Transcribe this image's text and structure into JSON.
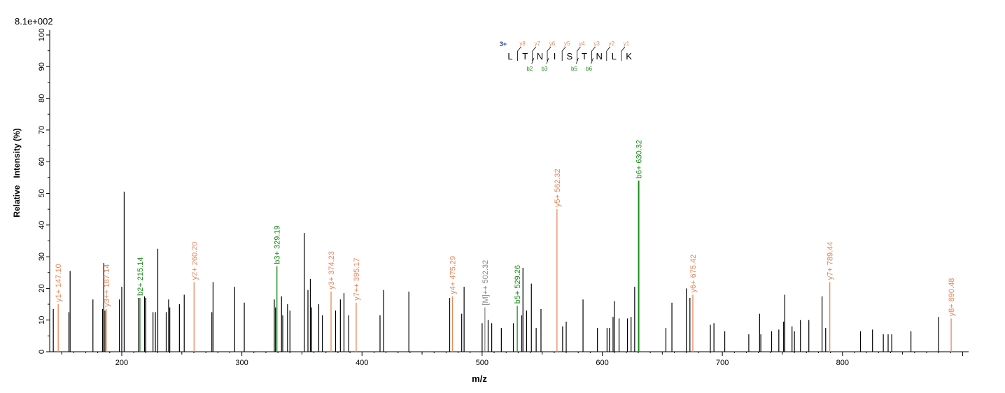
{
  "max_intensity_label": "8.1e+002",
  "chart_data": {
    "type": "bar",
    "xlabel": "m/z",
    "ylabel": "Relative   Intensity (%)",
    "xlim": [
      140,
      905
    ],
    "ylim": [
      0,
      100
    ],
    "x_ticks": [
      200,
      300,
      400,
      500,
      600,
      700,
      800
    ],
    "y_ticks": [
      0,
      10,
      20,
      30,
      40,
      50,
      60,
      70,
      80,
      90,
      100
    ],
    "colors": {
      "unmatched": "#000000",
      "y_ion": "#e8875a",
      "b_ion": "#1a8a1a",
      "precursor": "#8a8a8a",
      "charge": "#1f3b8f"
    },
    "peptide": {
      "charge": "3+",
      "residues": [
        "L",
        "T",
        "N",
        "I",
        "S",
        "T",
        "N",
        "L",
        "K"
      ],
      "y_labels": [
        "y8",
        "y7",
        "y6",
        "y5",
        "y4",
        "y3",
        "y2",
        "y1"
      ],
      "b_labels": [
        "b2",
        "b3",
        "b5",
        "b6"
      ]
    },
    "unmatched_peaks": [
      [
        143,
        13.5
      ],
      [
        156,
        12.5
      ],
      [
        157,
        25.5
      ],
      [
        176,
        16.5
      ],
      [
        184,
        13.5
      ],
      [
        185,
        28
      ],
      [
        186,
        13
      ],
      [
        198,
        16.5
      ],
      [
        200,
        20.5
      ],
      [
        202,
        50.5
      ],
      [
        214,
        17
      ],
      [
        219,
        17.5
      ],
      [
        220,
        17
      ],
      [
        226,
        12.5
      ],
      [
        228,
        12.5
      ],
      [
        230,
        32.5
      ],
      [
        237,
        12.5
      ],
      [
        239,
        16.5
      ],
      [
        240,
        14
      ],
      [
        248,
        15
      ],
      [
        252,
        18
      ],
      [
        275,
        12.5
      ],
      [
        276,
        22
      ],
      [
        294,
        20.5
      ],
      [
        302,
        15.5
      ],
      [
        327,
        16.5
      ],
      [
        328,
        14
      ],
      [
        333,
        17.5
      ],
      [
        334,
        11.5
      ],
      [
        338,
        15
      ],
      [
        340,
        13
      ],
      [
        352,
        37.5
      ],
      [
        355,
        19.5
      ],
      [
        357,
        23
      ],
      [
        358,
        14
      ],
      [
        364,
        15
      ],
      [
        367,
        11.5
      ],
      [
        378,
        13
      ],
      [
        382,
        16.5
      ],
      [
        385,
        18.5
      ],
      [
        389,
        11.5
      ],
      [
        415,
        11.5
      ],
      [
        418,
        19.5
      ],
      [
        439,
        19
      ],
      [
        473,
        17
      ],
      [
        483,
        12
      ],
      [
        485,
        20.5
      ],
      [
        500,
        9
      ],
      [
        505,
        10
      ],
      [
        508,
        9
      ],
      [
        516,
        7.5
      ],
      [
        526,
        9
      ],
      [
        533,
        11.5
      ],
      [
        534,
        26.5
      ],
      [
        537,
        13
      ],
      [
        541,
        21.5
      ],
      [
        545,
        7.5
      ],
      [
        549,
        13.5
      ],
      [
        567,
        8
      ],
      [
        570,
        9.5
      ],
      [
        584,
        16.5
      ],
      [
        596,
        7.5
      ],
      [
        604,
        7.5
      ],
      [
        606,
        7.5
      ],
      [
        609,
        11
      ],
      [
        610,
        16
      ],
      [
        614,
        10.5
      ],
      [
        621,
        10.5
      ],
      [
        624,
        11
      ],
      [
        627,
        20.5
      ],
      [
        653,
        7.5
      ],
      [
        658,
        15.5
      ],
      [
        670,
        20
      ],
      [
        673,
        17
      ],
      [
        690,
        8.5
      ],
      [
        693,
        9
      ],
      [
        702,
        6.5
      ],
      [
        722,
        5.5
      ],
      [
        731,
        12
      ],
      [
        732,
        5.5
      ],
      [
        741,
        6.5
      ],
      [
        747,
        7
      ],
      [
        751,
        9.5
      ],
      [
        752,
        18
      ],
      [
        758,
        8
      ],
      [
        760,
        6.5
      ],
      [
        765,
        10
      ],
      [
        772,
        10
      ],
      [
        783,
        17.5
      ],
      [
        786,
        7.5
      ],
      [
        815,
        6.5
      ],
      [
        825,
        7
      ],
      [
        834,
        5.5
      ],
      [
        838,
        5.5
      ],
      [
        841,
        5.5
      ],
      [
        857,
        6.5
      ],
      [
        880,
        11
      ]
    ],
    "labeled_peaks": [
      {
        "mz": 147.1,
        "intensity": 15,
        "ion": "y",
        "label": "y1+ 147.10"
      },
      {
        "mz": 187.14,
        "intensity": 13.5,
        "ion": "y",
        "label": "y3++ 187.14"
      },
      {
        "mz": 215.14,
        "intensity": 17,
        "ion": "b",
        "label": "b2+ 215.14"
      },
      {
        "mz": 260.2,
        "intensity": 22,
        "ion": "y",
        "label": "y2+ 260.20"
      },
      {
        "mz": 329.19,
        "intensity": 27,
        "ion": "b",
        "label": "b3+ 329.19"
      },
      {
        "mz": 374.23,
        "intensity": 19,
        "ion": "y",
        "label": "y3+ 374.23"
      },
      {
        "mz": 395.17,
        "intensity": 15.5,
        "ion": "y",
        "label": "y7++ 395.17"
      },
      {
        "mz": 475.29,
        "intensity": 17.5,
        "ion": "y",
        "label": "y4+ 475.29"
      },
      {
        "mz": 502.32,
        "intensity": 14,
        "ion": "precursor",
        "label": "[M]++ 502.32"
      },
      {
        "mz": 529.26,
        "intensity": 14.5,
        "ion": "b",
        "label": "b5+ 529.26"
      },
      {
        "mz": 562.32,
        "intensity": 45,
        "ion": "y",
        "label": "y5+ 562.32"
      },
      {
        "mz": 630.32,
        "intensity": 54,
        "ion": "b",
        "label": "b6+ 630.32"
      },
      {
        "mz": 675.42,
        "intensity": 18,
        "ion": "y",
        "label": "y6+ 675.42"
      },
      {
        "mz": 789.44,
        "intensity": 22,
        "ion": "y",
        "label": "y7+ 789.44"
      },
      {
        "mz": 890.48,
        "intensity": 10.5,
        "ion": "y",
        "label": "y8+ 890.48"
      }
    ]
  }
}
